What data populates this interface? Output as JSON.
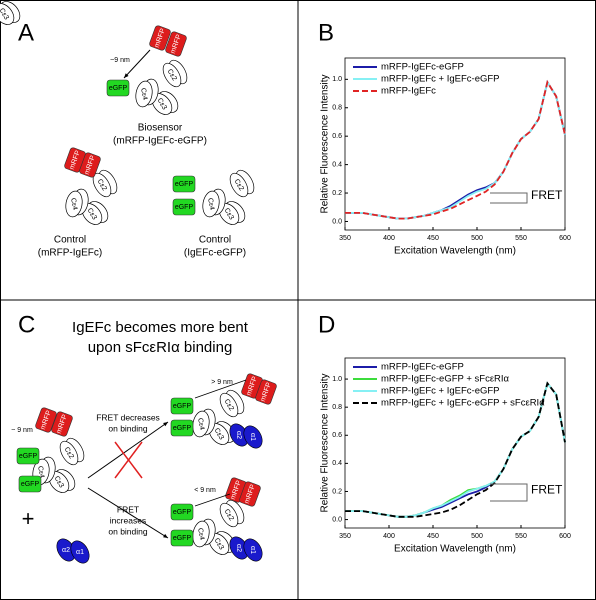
{
  "panels": [
    "A",
    "B",
    "C",
    "D"
  ],
  "molecule_labels": {
    "mrfp": "mRFP",
    "egfp": "eGFP",
    "ce2": "Cε2",
    "ce3": "Cε3",
    "ce4": "Cε4",
    "a1": "α1",
    "a2": "α2"
  },
  "panel_a": {
    "distance": "~9 nm",
    "biosensor": [
      "Biosensor",
      "(mRFP-IgEFc-eGFP)"
    ],
    "control_1": [
      "Control",
      "(mRFP-IgEFc)"
    ],
    "control_2": [
      "Control",
      "(IgEFc-eGFP)"
    ]
  },
  "panel_c": {
    "title": [
      "IgEFc becomes more bent",
      "upon sFcεRIα binding"
    ],
    "start_distance": "~ 9 nm",
    "plus": "+",
    "decrease": [
      "FRET decreases",
      "on binding"
    ],
    "decrease_distance": "> 9 nm",
    "increase": [
      "FRET",
      "increases",
      "on binding"
    ],
    "increase_distance": "< 9 nm"
  },
  "chart_data": [
    {
      "type": "line",
      "xlabel": "Excitation Wavelength (nm)",
      "ylabel": "Relative Fluorescence Intensity",
      "annotation": "FRET",
      "legend": "upper left",
      "x": [
        350,
        360,
        370,
        380,
        390,
        400,
        410,
        420,
        430,
        440,
        450,
        460,
        470,
        480,
        490,
        500,
        510,
        520,
        530,
        540,
        550,
        560,
        570,
        580,
        590,
        600
      ],
      "xlim": [
        350,
        600
      ],
      "xticks": [
        350,
        400,
        450,
        500,
        550,
        600
      ],
      "ylim": [
        -0.06,
        1.15
      ],
      "yticks": [
        {
          "value": 0,
          "label": "0.0"
        },
        0.2,
        0.4,
        0.6,
        0.8,
        {
          "value": 1,
          "label": "1.0"
        }
      ],
      "series": [
        {
          "name": "mRFP-IgEFc-eGFP",
          "color": "#1c1ca8",
          "line_style": "solid",
          "values": [
            0.06,
            0.06,
            0.06,
            0.05,
            0.04,
            0.03,
            0.02,
            0.02,
            0.03,
            0.04,
            0.06,
            0.08,
            0.11,
            0.15,
            0.19,
            0.22,
            0.24,
            0.27,
            0.35,
            0.48,
            0.58,
            0.63,
            0.72,
            0.98,
            0.88,
            0.61
          ]
        },
        {
          "name": "mRFP-IgEFc + IgEFc-eGFP",
          "color": "#86f0f4",
          "line_style": "solid",
          "values": [
            0.06,
            0.06,
            0.06,
            0.05,
            0.04,
            0.03,
            0.02,
            0.02,
            0.03,
            0.04,
            0.06,
            0.08,
            0.1,
            0.14,
            0.18,
            0.21,
            0.23,
            0.27,
            0.35,
            0.48,
            0.58,
            0.63,
            0.72,
            0.98,
            0.88,
            0.61
          ]
        },
        {
          "name": "mRFP-IgEFc",
          "color": "#e02424",
          "line_style": "dashed",
          "values": [
            0.06,
            0.06,
            0.06,
            0.05,
            0.04,
            0.03,
            0.02,
            0.02,
            0.03,
            0.04,
            0.05,
            0.07,
            0.09,
            0.12,
            0.15,
            0.18,
            0.21,
            0.26,
            0.35,
            0.48,
            0.58,
            0.63,
            0.72,
            0.98,
            0.88,
            0.61
          ]
        }
      ]
    },
    {
      "type": "line",
      "xlabel": "Excitation Wavelength (nm)",
      "ylabel": "Relative Fluorescence Intensity",
      "annotation": "FRET",
      "legend": "upper left",
      "x": [
        350,
        360,
        370,
        380,
        390,
        400,
        410,
        420,
        430,
        440,
        450,
        460,
        470,
        480,
        490,
        500,
        510,
        520,
        530,
        540,
        550,
        560,
        570,
        580,
        590,
        600
      ],
      "xlim": [
        350,
        600
      ],
      "xticks": [
        350,
        400,
        450,
        500,
        550,
        600
      ],
      "ylim": [
        -0.06,
        1.15
      ],
      "yticks": [
        {
          "value": 0,
          "label": "0.0"
        },
        0.2,
        0.4,
        0.6,
        0.8,
        {
          "value": 1,
          "label": "1.0"
        }
      ],
      "series": [
        {
          "name": "mRFP-IgEFc-eGFP",
          "color": "#1c1ca8",
          "line_style": "solid",
          "values": [
            0.06,
            0.06,
            0.06,
            0.05,
            0.04,
            0.03,
            0.02,
            0.02,
            0.03,
            0.05,
            0.07,
            0.09,
            0.12,
            0.15,
            0.18,
            0.2,
            0.23,
            0.27,
            0.36,
            0.5,
            0.59,
            0.63,
            0.73,
            0.97,
            0.89,
            0.55
          ]
        },
        {
          "name": "mRFP-IgEFc-eGFP + sFcεRIα",
          "color": "#3cdc3c",
          "line_style": "solid",
          "values": [
            0.06,
            0.06,
            0.06,
            0.05,
            0.04,
            0.03,
            0.02,
            0.02,
            0.03,
            0.05,
            0.08,
            0.1,
            0.14,
            0.17,
            0.21,
            0.22,
            0.24,
            0.27,
            0.36,
            0.5,
            0.59,
            0.63,
            0.73,
            0.97,
            0.89,
            0.55
          ]
        },
        {
          "name": "mRFP-IgEFc + IgEFc-eGFP",
          "color": "#86f0f4",
          "line_style": "solid",
          "values": [
            0.06,
            0.06,
            0.06,
            0.05,
            0.04,
            0.03,
            0.02,
            0.02,
            0.03,
            0.05,
            0.08,
            0.1,
            0.13,
            0.16,
            0.2,
            0.22,
            0.24,
            0.27,
            0.36,
            0.5,
            0.59,
            0.63,
            0.73,
            0.97,
            0.89,
            0.55
          ]
        },
        {
          "name": "mRFP-IgEFc + IgEFc-eGFP + sFcεRIα",
          "color": "#000000",
          "line_style": "dashed",
          "values": [
            0.06,
            0.06,
            0.06,
            0.05,
            0.04,
            0.03,
            0.02,
            0.02,
            0.02,
            0.03,
            0.04,
            0.05,
            0.07,
            0.1,
            0.14,
            0.18,
            0.21,
            0.26,
            0.36,
            0.5,
            0.59,
            0.63,
            0.73,
            0.97,
            0.89,
            0.55
          ]
        }
      ]
    }
  ]
}
